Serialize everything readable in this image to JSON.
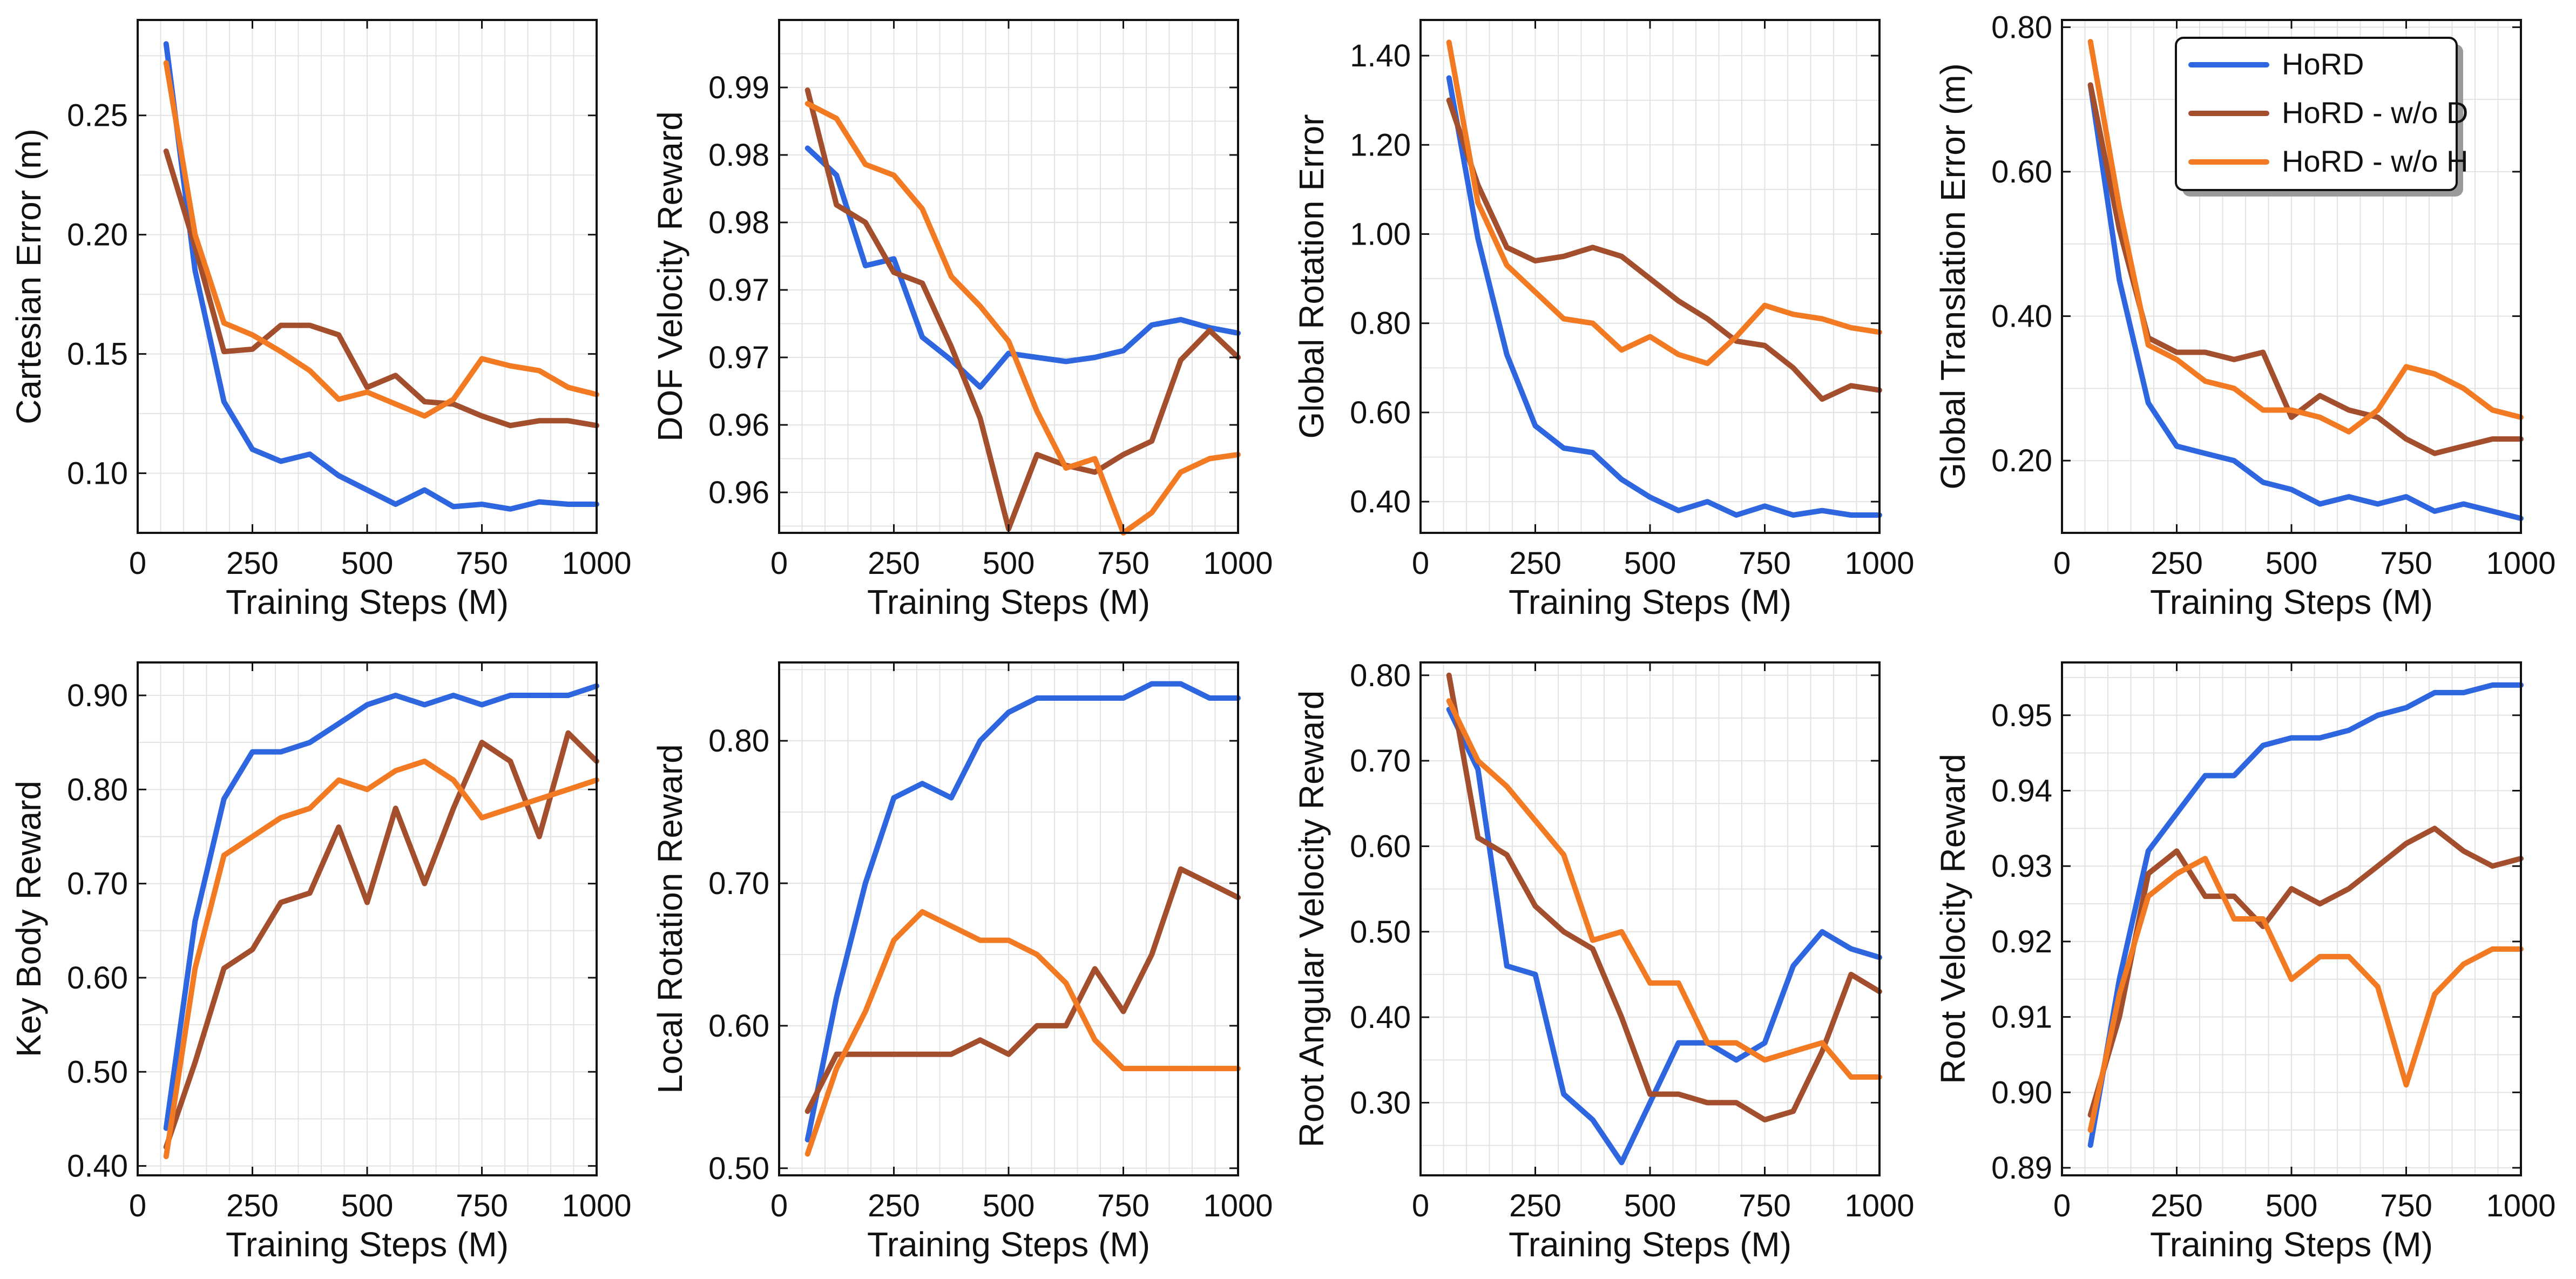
{
  "legend": {
    "placement": "top-right",
    "entries": [
      {
        "name": "HoRD",
        "color": "#2e66e0"
      },
      {
        "name": "HoRD - w/o D",
        "color": "#a34f2d"
      },
      {
        "name": "HoRD - w/o H",
        "color": "#f17a22"
      }
    ]
  },
  "chart_data": [
    {
      "type": "line",
      "title": "",
      "xlabel": "Training Steps (M)",
      "ylabel": "Cartesian Error (m)",
      "xlim": [
        0,
        1000
      ],
      "ylim": [
        0.075,
        0.29
      ],
      "xticks": [
        0,
        250,
        500,
        750,
        1000
      ],
      "xtick_labels": [
        "0",
        "250",
        "500",
        "750",
        "1000"
      ],
      "yticks": [
        0.1,
        0.15,
        0.2,
        0.25
      ],
      "ytick_labels": [
        "0.10",
        "0.15",
        "0.20",
        "0.25"
      ],
      "grid": true,
      "x": [
        62,
        125,
        188,
        250,
        312,
        375,
        438,
        500,
        562,
        625,
        688,
        750,
        812,
        875,
        938,
        1000
      ],
      "series": [
        {
          "name": "HoRD",
          "values": [
            0.28,
            0.185,
            0.13,
            0.11,
            0.105,
            0.108,
            0.099,
            0.093,
            0.087,
            0.093,
            0.086,
            0.087,
            0.085,
            0.088,
            0.087,
            0.087
          ]
        },
        {
          "name": "HoRD - w/o D",
          "values": [
            0.235,
            0.195,
            0.151,
            0.152,
            0.162,
            0.162,
            0.158,
            0.136,
            0.141,
            0.13,
            0.129,
            0.124,
            0.12,
            0.122,
            0.122,
            0.12
          ]
        },
        {
          "name": "HoRD - w/o H",
          "values": [
            0.272,
            0.2,
            0.163,
            0.158,
            0.151,
            0.143,
            0.131,
            0.134,
            0.129,
            0.124,
            0.131,
            0.148,
            0.145,
            0.143,
            0.136,
            0.133
          ]
        }
      ]
    },
    {
      "type": "line",
      "title": "",
      "xlabel": "Training Steps (M)",
      "ylabel": "DOF Velocity Reward",
      "xlim": [
        0,
        1000
      ],
      "ylim": [
        0.957,
        0.995
      ],
      "xticks": [
        0,
        250,
        500,
        750,
        1000
      ],
      "xtick_labels": [
        "0",
        "250",
        "500",
        "750",
        "1000"
      ],
      "yticks": [
        0.96,
        0.965,
        0.97,
        0.975,
        0.98,
        0.985,
        0.99
      ],
      "ytick_labels": [
        "0.96",
        "0.96",
        "0.97",
        "0.97",
        "0.98",
        "0.98",
        "0.99"
      ],
      "grid": true,
      "x": [
        62,
        125,
        188,
        250,
        312,
        375,
        438,
        500,
        562,
        625,
        688,
        750,
        812,
        875,
        938,
        1000
      ],
      "series": [
        {
          "name": "HoRD",
          "values": [
            0.9855,
            0.9835,
            0.9768,
            0.9773,
            0.9715,
            0.9698,
            0.9678,
            0.9703,
            0.97,
            0.9697,
            0.97,
            0.9705,
            0.9724,
            0.9728,
            0.9722,
            0.9718
          ]
        },
        {
          "name": "HoRD - w/o D",
          "values": [
            0.9898,
            0.9813,
            0.98,
            0.9763,
            0.9755,
            0.9708,
            0.9655,
            0.9573,
            0.9628,
            0.962,
            0.9615,
            0.9628,
            0.9638,
            0.9698,
            0.972,
            0.97
          ]
        },
        {
          "name": "HoRD - w/o H",
          "values": [
            0.9888,
            0.9877,
            0.9843,
            0.9835,
            0.981,
            0.976,
            0.9738,
            0.9712,
            0.966,
            0.9618,
            0.9625,
            0.957,
            0.9585,
            0.9615,
            0.9625,
            0.9628
          ]
        }
      ]
    },
    {
      "type": "line",
      "title": "",
      "xlabel": "Training Steps (M)",
      "ylabel": "Global Rotation Error",
      "xlim": [
        0,
        1000
      ],
      "ylim": [
        0.33,
        1.48
      ],
      "xticks": [
        0,
        250,
        500,
        750,
        1000
      ],
      "xtick_labels": [
        "0",
        "250",
        "500",
        "750",
        "1000"
      ],
      "yticks": [
        0.4,
        0.6,
        0.8,
        1.0,
        1.2,
        1.4
      ],
      "ytick_labels": [
        "0.40",
        "0.60",
        "0.80",
        "1.00",
        "1.20",
        "1.40"
      ],
      "grid": true,
      "x": [
        62,
        125,
        188,
        250,
        312,
        375,
        438,
        500,
        562,
        625,
        688,
        750,
        812,
        875,
        938,
        1000
      ],
      "series": [
        {
          "name": "HoRD",
          "values": [
            1.35,
            0.99,
            0.73,
            0.57,
            0.52,
            0.51,
            0.45,
            0.41,
            0.38,
            0.4,
            0.37,
            0.39,
            0.37,
            0.38,
            0.37,
            0.37
          ]
        },
        {
          "name": "HoRD - w/o D",
          "values": [
            1.3,
            1.11,
            0.97,
            0.94,
            0.95,
            0.97,
            0.95,
            0.9,
            0.85,
            0.81,
            0.76,
            0.75,
            0.7,
            0.63,
            0.66,
            0.65
          ]
        },
        {
          "name": "HoRD - w/o H",
          "values": [
            1.43,
            1.07,
            0.93,
            0.87,
            0.81,
            0.8,
            0.74,
            0.77,
            0.73,
            0.71,
            0.77,
            0.84,
            0.82,
            0.81,
            0.79,
            0.78
          ]
        }
      ]
    },
    {
      "type": "line",
      "title": "",
      "xlabel": "Training Steps (M)",
      "ylabel": "Global Translation Error (m)",
      "xlim": [
        0,
        1000
      ],
      "ylim": [
        0.1,
        0.81
      ],
      "xticks": [
        0,
        250,
        500,
        750,
        1000
      ],
      "xtick_labels": [
        "0",
        "250",
        "500",
        "750",
        "1000"
      ],
      "yticks": [
        0.2,
        0.4,
        0.6,
        0.8
      ],
      "ytick_labels": [
        "0.20",
        "0.40",
        "0.60",
        "0.80"
      ],
      "grid": true,
      "x": [
        62,
        125,
        188,
        250,
        312,
        375,
        438,
        500,
        562,
        625,
        688,
        750,
        812,
        875,
        938,
        1000
      ],
      "series": [
        {
          "name": "HoRD",
          "values": [
            0.72,
            0.45,
            0.28,
            0.22,
            0.21,
            0.2,
            0.17,
            0.16,
            0.14,
            0.15,
            0.14,
            0.15,
            0.13,
            0.14,
            0.13,
            0.12
          ]
        },
        {
          "name": "HoRD - w/o D",
          "values": [
            0.72,
            0.52,
            0.37,
            0.35,
            0.35,
            0.34,
            0.35,
            0.26,
            0.29,
            0.27,
            0.26,
            0.23,
            0.21,
            0.22,
            0.23,
            0.23
          ]
        },
        {
          "name": "HoRD - w/o H",
          "values": [
            0.78,
            0.55,
            0.36,
            0.34,
            0.31,
            0.3,
            0.27,
            0.27,
            0.26,
            0.24,
            0.27,
            0.33,
            0.32,
            0.3,
            0.27,
            0.26
          ]
        }
      ]
    },
    {
      "type": "line",
      "title": "",
      "xlabel": "Training Steps (M)",
      "ylabel": "Key Body Reward",
      "xlim": [
        0,
        1000
      ],
      "ylim": [
        0.39,
        0.935
      ],
      "xticks": [
        0,
        250,
        500,
        750,
        1000
      ],
      "xtick_labels": [
        "0",
        "250",
        "500",
        "750",
        "1000"
      ],
      "yticks": [
        0.4,
        0.5,
        0.6,
        0.7,
        0.8,
        0.9
      ],
      "ytick_labels": [
        "0.40",
        "0.50",
        "0.60",
        "0.70",
        "0.80",
        "0.90"
      ],
      "grid": true,
      "x": [
        62,
        125,
        188,
        250,
        312,
        375,
        438,
        500,
        562,
        625,
        688,
        750,
        812,
        875,
        938,
        1000
      ],
      "series": [
        {
          "name": "HoRD",
          "values": [
            0.44,
            0.66,
            0.79,
            0.84,
            0.84,
            0.85,
            0.87,
            0.89,
            0.9,
            0.89,
            0.9,
            0.89,
            0.9,
            0.9,
            0.9,
            0.91
          ]
        },
        {
          "name": "HoRD - w/o D",
          "values": [
            0.42,
            0.51,
            0.61,
            0.63,
            0.68,
            0.69,
            0.76,
            0.68,
            0.78,
            0.7,
            0.78,
            0.85,
            0.83,
            0.75,
            0.86,
            0.83
          ]
        },
        {
          "name": "HoRD - w/o H",
          "values": [
            0.41,
            0.61,
            0.73,
            0.75,
            0.77,
            0.78,
            0.81,
            0.8,
            0.82,
            0.83,
            0.81,
            0.77,
            0.78,
            0.79,
            0.8,
            0.81
          ]
        }
      ]
    },
    {
      "type": "line",
      "title": "",
      "xlabel": "Training Steps (M)",
      "ylabel": "Local Rotation Reward",
      "xlim": [
        0,
        1000
      ],
      "ylim": [
        0.495,
        0.855
      ],
      "xticks": [
        0,
        250,
        500,
        750,
        1000
      ],
      "xtick_labels": [
        "0",
        "250",
        "500",
        "750",
        "1000"
      ],
      "yticks": [
        0.5,
        0.6,
        0.7,
        0.8
      ],
      "ytick_labels": [
        "0.50",
        "0.60",
        "0.70",
        "0.80"
      ],
      "grid": true,
      "x": [
        62,
        125,
        188,
        250,
        312,
        375,
        438,
        500,
        562,
        625,
        688,
        750,
        812,
        875,
        938,
        1000
      ],
      "series": [
        {
          "name": "HoRD",
          "values": [
            0.52,
            0.62,
            0.7,
            0.76,
            0.77,
            0.76,
            0.8,
            0.82,
            0.83,
            0.83,
            0.83,
            0.83,
            0.84,
            0.84,
            0.83,
            0.83
          ]
        },
        {
          "name": "HoRD - w/o D",
          "values": [
            0.54,
            0.58,
            0.58,
            0.58,
            0.58,
            0.58,
            0.59,
            0.58,
            0.6,
            0.6,
            0.64,
            0.61,
            0.65,
            0.71,
            0.7,
            0.69
          ]
        },
        {
          "name": "HoRD - w/o H",
          "values": [
            0.51,
            0.57,
            0.61,
            0.66,
            0.68,
            0.67,
            0.66,
            0.66,
            0.65,
            0.63,
            0.59,
            0.57,
            0.57,
            0.57,
            0.57,
            0.57
          ]
        }
      ]
    },
    {
      "type": "line",
      "title": "",
      "xlabel": "Training Steps (M)",
      "ylabel": "Root Angular Velocity Reward",
      "xlim": [
        0,
        1000
      ],
      "ylim": [
        0.215,
        0.815
      ],
      "xticks": [
        0,
        250,
        500,
        750,
        1000
      ],
      "xtick_labels": [
        "0",
        "250",
        "500",
        "750",
        "1000"
      ],
      "yticks": [
        0.3,
        0.4,
        0.5,
        0.6,
        0.7,
        0.8
      ],
      "ytick_labels": [
        "0.30",
        "0.40",
        "0.50",
        "0.60",
        "0.70",
        "0.80"
      ],
      "grid": true,
      "x": [
        62,
        125,
        188,
        250,
        312,
        375,
        438,
        500,
        562,
        625,
        688,
        750,
        812,
        875,
        938,
        1000
      ],
      "series": [
        {
          "name": "HoRD",
          "values": [
            0.76,
            0.69,
            0.46,
            0.45,
            0.31,
            0.28,
            0.23,
            0.3,
            0.37,
            0.37,
            0.35,
            0.37,
            0.46,
            0.5,
            0.48,
            0.47
          ]
        },
        {
          "name": "HoRD - w/o D",
          "values": [
            0.8,
            0.61,
            0.59,
            0.53,
            0.5,
            0.48,
            0.4,
            0.31,
            0.31,
            0.3,
            0.3,
            0.28,
            0.29,
            0.36,
            0.45,
            0.43
          ]
        },
        {
          "name": "HoRD - w/o H",
          "values": [
            0.77,
            0.7,
            0.67,
            0.63,
            0.59,
            0.49,
            0.5,
            0.44,
            0.44,
            0.37,
            0.37,
            0.35,
            0.36,
            0.37,
            0.33,
            0.33
          ]
        }
      ]
    },
    {
      "type": "line",
      "title": "",
      "xlabel": "Training Steps (M)",
      "ylabel": "Root Velocity Reward",
      "xlim": [
        0,
        1000
      ],
      "ylim": [
        0.889,
        0.957
      ],
      "xticks": [
        0,
        250,
        500,
        750,
        1000
      ],
      "xtick_labels": [
        "0",
        "250",
        "500",
        "750",
        "1000"
      ],
      "yticks": [
        0.89,
        0.9,
        0.91,
        0.92,
        0.93,
        0.94,
        0.95
      ],
      "ytick_labels": [
        "0.89",
        "0.90",
        "0.91",
        "0.92",
        "0.93",
        "0.94",
        "0.95"
      ],
      "grid": true,
      "x": [
        62,
        125,
        188,
        250,
        312,
        375,
        438,
        500,
        562,
        625,
        688,
        750,
        812,
        875,
        938,
        1000
      ],
      "series": [
        {
          "name": "HoRD",
          "values": [
            0.893,
            0.915,
            0.932,
            0.937,
            0.942,
            0.942,
            0.946,
            0.947,
            0.947,
            0.948,
            0.95,
            0.951,
            0.953,
            0.953,
            0.954,
            0.954
          ]
        },
        {
          "name": "HoRD - w/o D",
          "values": [
            0.897,
            0.91,
            0.929,
            0.932,
            0.926,
            0.926,
            0.922,
            0.927,
            0.925,
            0.927,
            0.93,
            0.933,
            0.935,
            0.932,
            0.93,
            0.931
          ]
        },
        {
          "name": "HoRD - w/o H",
          "values": [
            0.895,
            0.913,
            0.926,
            0.929,
            0.931,
            0.923,
            0.923,
            0.915,
            0.918,
            0.918,
            0.914,
            0.901,
            0.913,
            0.917,
            0.919,
            0.919
          ]
        }
      ]
    }
  ]
}
